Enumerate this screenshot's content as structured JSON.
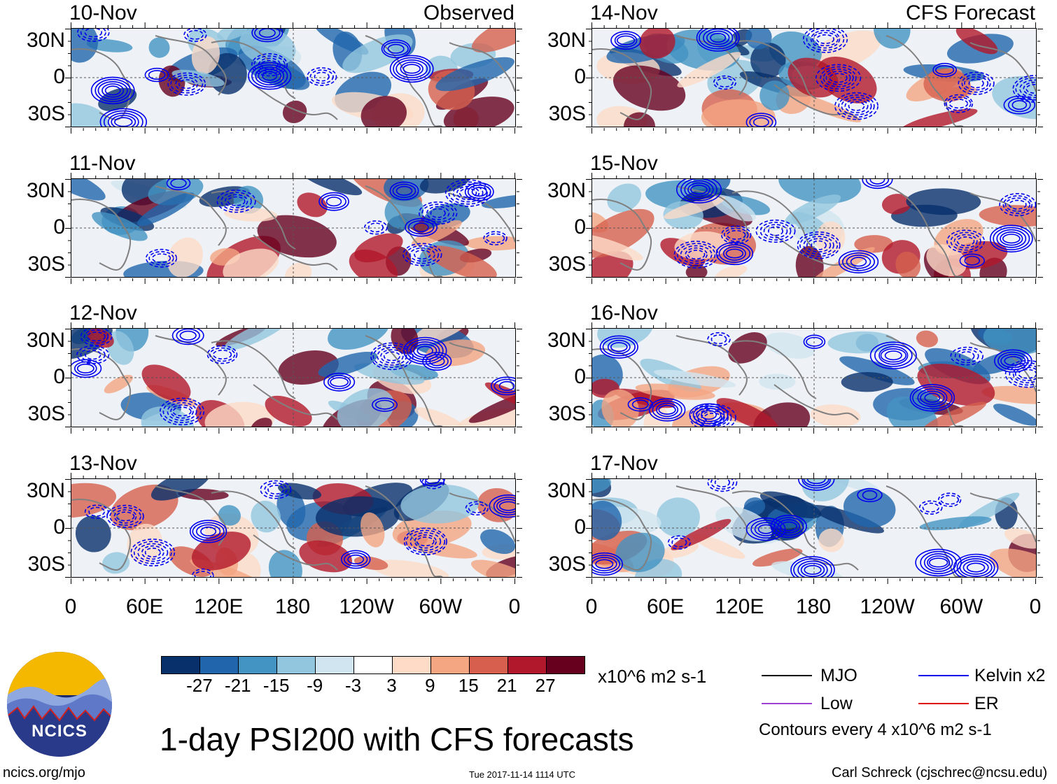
{
  "panels": [
    {
      "date": "10-Nov",
      "corner": "Observed"
    },
    {
      "date": "11-Nov",
      "corner": ""
    },
    {
      "date": "12-Nov",
      "corner": ""
    },
    {
      "date": "13-Nov",
      "corner": ""
    },
    {
      "date": "14-Nov",
      "corner": "CFS Forecast"
    },
    {
      "date": "15-Nov",
      "corner": ""
    },
    {
      "date": "16-Nov",
      "corner": ""
    },
    {
      "date": "17-Nov",
      "corner": ""
    }
  ],
  "lat_labels": [
    "30N",
    "0",
    "30S"
  ],
  "lon_labels": [
    "0",
    "60E",
    "120E",
    "180",
    "120W",
    "60W",
    "0"
  ],
  "colorbar": {
    "colors": [
      "#08306b",
      "#2166ac",
      "#4393c3",
      "#92c5de",
      "#d1e5f0",
      "#ffffff",
      "#fddbc7",
      "#f4a582",
      "#d6604d",
      "#b2182b",
      "#67001f"
    ],
    "labels": [
      "-27",
      "-21",
      "-15",
      "-9",
      "-3",
      "3",
      "9",
      "15",
      "21",
      "27"
    ],
    "units": "x10^6 m2 s-1"
  },
  "legend": {
    "items": [
      {
        "label": "MJO",
        "color": "#000000"
      },
      {
        "label": "Kelvin x2",
        "color": "#0000ee"
      },
      {
        "label": "Low",
        "color": "#a040d0"
      },
      {
        "label": "ER",
        "color": "#e00000"
      }
    ],
    "contours_note": "Contours every 4 x10^6 m2 s-1"
  },
  "title": "1-day PSI200 with CFS forecasts",
  "logo_text": "NCICS",
  "website": "ncics.org/mjo",
  "timestamp": "Tue 2017-11-14 1114 UTC",
  "author": "Carl Schreck (cjschrec@ncsu.edu)"
}
